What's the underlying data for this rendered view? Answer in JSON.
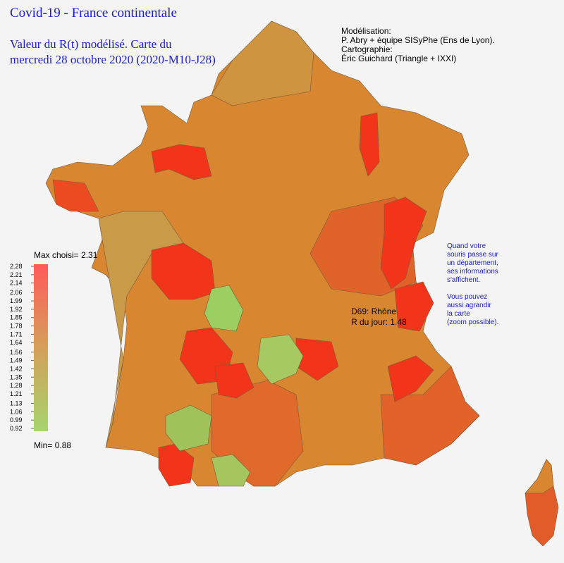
{
  "header": {
    "title": "Covid-19 - France continentale",
    "subtitle_lines": [
      "Valeur du R(t) modélisé. Carte du",
      "mercredi 28 octobre 2020 (2020-M10-J28)"
    ]
  },
  "credits": [
    "Modélisation:",
    "P. Abry + équipe  SISyPhe (Ens de Lyon).",
    "Cartographie:",
    "Éric Guichard (Triangle + IXXI)"
  ],
  "info": [
    "Quand votre",
    "souris passe sur",
    "un département,",
    "ses informations",
    "s'affichent.",
    "",
    "Vous pouvez",
    "aussi agrandir",
    "la carte",
    "(zoom possible)."
  ],
  "legend": {
    "max_label": "Max choisi=",
    "max": 2.31,
    "min_label": "Min=",
    "min": 0.88,
    "ticks": [
      2.28,
      2.21,
      2.14,
      2.06,
      1.99,
      1.92,
      1.85,
      1.78,
      1.71,
      1.64,
      1.56,
      1.49,
      1.42,
      1.35,
      1.28,
      1.21,
      1.13,
      1.06,
      0.99,
      0.92
    ]
  },
  "tooltip": {
    "department": "D69: Rhône",
    "label": "R du jour:",
    "value": 1.48
  }
}
